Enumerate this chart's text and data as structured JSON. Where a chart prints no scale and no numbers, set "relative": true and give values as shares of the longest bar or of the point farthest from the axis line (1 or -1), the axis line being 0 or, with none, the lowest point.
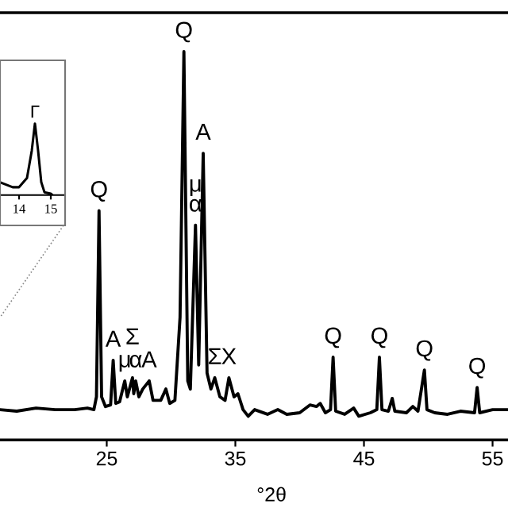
{
  "chart_data": [
    {
      "type": "line",
      "xlabel": "°2θ",
      "relative": true,
      "color": "#000000",
      "xlim": [
        16.7,
        56.2
      ],
      "xticks": [
        25,
        35,
        45,
        55
      ],
      "grid": false,
      "legend": false,
      "marker": "none",
      "line_style": "solid",
      "x": [
        16.7,
        18,
        19.5,
        21,
        22.5,
        23.5,
        24.0,
        24.2,
        24.4,
        24.6,
        24.9,
        25.3,
        25.5,
        25.7,
        26.0,
        26.4,
        26.6,
        27.0,
        27.1,
        27.25,
        27.5,
        27.8,
        28.3,
        28.6,
        29.2,
        29.6,
        29.9,
        30.3,
        30.7,
        31.0,
        31.3,
        31.5,
        31.9,
        32.15,
        32.5,
        32.8,
        33.1,
        33.4,
        33.8,
        34.2,
        34.5,
        34.9,
        35.2,
        35.6,
        36.0,
        36.5,
        37.5,
        38.3,
        39.0,
        40.0,
        40.8,
        41.3,
        41.6,
        42.0,
        42.4,
        42.6,
        42.8,
        43.5,
        44.2,
        44.6,
        45.5,
        46.0,
        46.2,
        46.4,
        46.9,
        47.2,
        47.4,
        48.3,
        48.8,
        49.2,
        49.7,
        49.9,
        50.5,
        51.5,
        52.5,
        53.6,
        53.8,
        54.0,
        55.0,
        56.2
      ],
      "values": [
        0.078,
        0.074,
        0.082,
        0.078,
        0.078,
        0.082,
        0.078,
        0.111,
        0.59,
        0.111,
        0.086,
        0.09,
        0.205,
        0.094,
        0.098,
        0.152,
        0.111,
        0.16,
        0.119,
        0.152,
        0.111,
        0.131,
        0.152,
        0.102,
        0.102,
        0.131,
        0.094,
        0.102,
        0.316,
        1.0,
        0.152,
        0.131,
        0.553,
        0.193,
        0.738,
        0.172,
        0.131,
        0.16,
        0.111,
        0.102,
        0.16,
        0.111,
        0.119,
        0.078,
        0.061,
        0.078,
        0.066,
        0.078,
        0.066,
        0.07,
        0.09,
        0.086,
        0.094,
        0.07,
        0.078,
        0.213,
        0.074,
        0.066,
        0.082,
        0.061,
        0.07,
        0.078,
        0.213,
        0.078,
        0.074,
        0.107,
        0.074,
        0.07,
        0.086,
        0.074,
        0.18,
        0.078,
        0.07,
        0.066,
        0.074,
        0.07,
        0.135,
        0.07,
        0.078,
        0.078
      ],
      "annotations": [
        {
          "text": "Q",
          "x": 24.4,
          "y": 0.59
        },
        {
          "text": "A",
          "x": 25.5,
          "y": 0.205
        },
        {
          "text": "μ",
          "x": 26.4,
          "y": 0.152
        },
        {
          "text": "α",
          "x": 27.25,
          "y": 0.152
        },
        {
          "text": "Σ",
          "x": 27.0,
          "y": 0.16
        },
        {
          "text": "A",
          "x": 28.3,
          "y": 0.152
        },
        {
          "text": "Q",
          "x": 31.0,
          "y": 1.0
        },
        {
          "text": "α",
          "x": 31.9,
          "y": 0.553
        },
        {
          "text": "μ",
          "x": 31.9,
          "y": 0.553
        },
        {
          "text": "A",
          "x": 32.5,
          "y": 0.738
        },
        {
          "text": "Σ",
          "x": 33.4,
          "y": 0.16
        },
        {
          "text": "X",
          "x": 34.5,
          "y": 0.16
        },
        {
          "text": "Q",
          "x": 42.6,
          "y": 0.213
        },
        {
          "text": "Q",
          "x": 46.2,
          "y": 0.213
        },
        {
          "text": "Q",
          "x": 49.7,
          "y": 0.18
        },
        {
          "text": "Q",
          "x": 53.8,
          "y": 0.135
        }
      ]
    },
    {
      "type": "line",
      "relative": true,
      "color": "#000000",
      "xlim": [
        13.4,
        15.4
      ],
      "xticks": [
        14,
        15
      ],
      "grid": false,
      "legend": false,
      "marker": "none",
      "line_style": "solid",
      "x": [
        13.4,
        13.8,
        14.0,
        14.25,
        14.4,
        14.5,
        14.6,
        14.7,
        14.8,
        15.0,
        15.05
      ],
      "values": [
        0.18,
        0.11,
        0.11,
        0.24,
        0.62,
        1.0,
        0.62,
        0.18,
        0.04,
        0.02,
        0.0
      ],
      "annotations": [
        {
          "text": "Γ",
          "x": 14.5,
          "y": 1.0
        }
      ]
    }
  ]
}
